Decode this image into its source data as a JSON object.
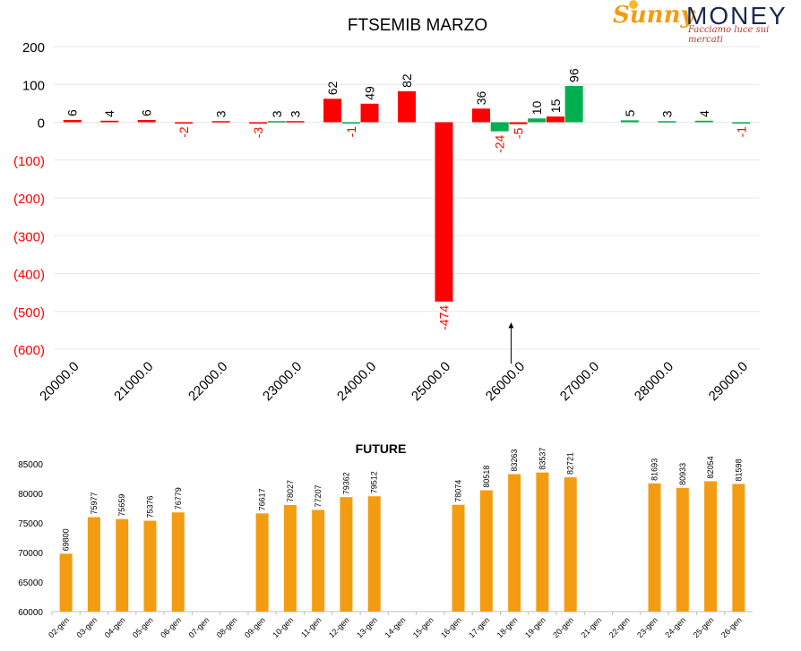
{
  "logo": {
    "brand_part1": "Sunny",
    "brand_part2": "MONEY",
    "tagline": "Facciamo luce sui mercati"
  },
  "chart_data": [
    {
      "type": "bar",
      "title": "FTSEMIB MARZO",
      "xlabel": "",
      "ylabel": "",
      "ylim": [
        -600,
        200
      ],
      "y_ticks": [
        200,
        100,
        0,
        -100,
        -200,
        -300,
        -400,
        -500,
        -600
      ],
      "y_tick_labels": [
        "200",
        "100",
        "0",
        "(100)",
        "(200)",
        "(300)",
        "(400)",
        "(500)",
        "(600)"
      ],
      "x_tick_labels": [
        "20000.0",
        "21000.0",
        "22000.0",
        "23000.0",
        "24000.0",
        "25000.0",
        "26000.0",
        "27000.0",
        "28000.0",
        "29000.0"
      ],
      "x_ticks": [
        20000,
        21000,
        22000,
        23000,
        24000,
        25000,
        26000,
        27000,
        28000,
        29000
      ],
      "xlim": [
        19750,
        29250
      ],
      "grid": true,
      "colors": {
        "red": "#ff0000",
        "green": "#00b050",
        "negative_label": "#ff0000"
      },
      "bars": [
        {
          "x": 20000,
          "value": 6,
          "color": "red"
        },
        {
          "x": 20500,
          "value": 4,
          "color": "red"
        },
        {
          "x": 21000,
          "value": 6,
          "color": "red"
        },
        {
          "x": 21500,
          "value": -2,
          "color": "red"
        },
        {
          "x": 22000,
          "value": 3,
          "color": "red"
        },
        {
          "x": 22500,
          "value": -3,
          "color": "red"
        },
        {
          "x": 22750,
          "value": 3,
          "color": "green"
        },
        {
          "x": 23000,
          "value": 3,
          "color": "red"
        },
        {
          "x": 23500,
          "value": 62,
          "color": "red"
        },
        {
          "x": 23750,
          "value": -1,
          "color": "green"
        },
        {
          "x": 24000,
          "value": 49,
          "color": "red"
        },
        {
          "x": 24500,
          "value": 82,
          "color": "red"
        },
        {
          "x": 25000,
          "value": -474,
          "color": "red"
        },
        {
          "x": 25500,
          "value": 36,
          "color": "red"
        },
        {
          "x": 25750,
          "value": -24,
          "color": "green"
        },
        {
          "x": 26000,
          "value": -5,
          "color": "red"
        },
        {
          "x": 26250,
          "value": 10,
          "color": "green"
        },
        {
          "x": 26500,
          "value": 15,
          "color": "red"
        },
        {
          "x": 26750,
          "value": 96,
          "color": "green"
        },
        {
          "x": 27500,
          "value": 5,
          "color": "green"
        },
        {
          "x": 28000,
          "value": 3,
          "color": "green"
        },
        {
          "x": 28500,
          "value": 4,
          "color": "green"
        },
        {
          "x": 29000,
          "value": -1,
          "color": "green"
        }
      ],
      "annotation": {
        "type": "arrow",
        "x": 26000,
        "y_from": -600,
        "y_to": -530
      }
    },
    {
      "type": "bar",
      "title": "FUTURE",
      "xlabel": "",
      "ylabel": "",
      "ylim": [
        60000,
        85000
      ],
      "y_ticks": [
        60000,
        65000,
        70000,
        75000,
        80000,
        85000
      ],
      "grid": false,
      "bar_color": "#f39c12",
      "categories": [
        "02-gen",
        "03-gen",
        "04-gen",
        "05-gen",
        "06-gen",
        "07-gen",
        "08-gen",
        "09-gen",
        "10-gen",
        "11-gen",
        "12-gen",
        "13-gen",
        "14-gen",
        "15-gen",
        "16-gen",
        "17-gen",
        "18-gen",
        "19-gen",
        "20-gen",
        "21-gen",
        "22-gen",
        "23-gen",
        "24-gen",
        "25-gen",
        "26-gen"
      ],
      "values": [
        69800,
        75977,
        75659,
        75376,
        76779,
        null,
        null,
        76617,
        78027,
        77207,
        79362,
        79512,
        null,
        null,
        78074,
        80518,
        83263,
        83537,
        82721,
        null,
        null,
        81693,
        80933,
        82054,
        81598
      ]
    }
  ]
}
